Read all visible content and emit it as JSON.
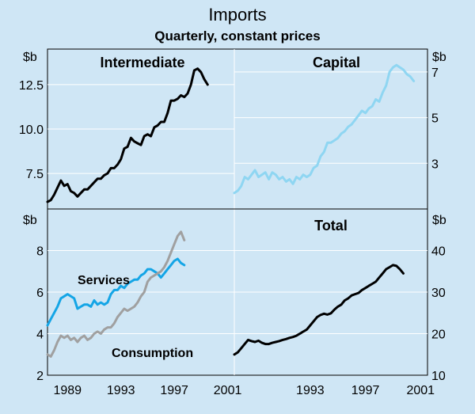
{
  "title": "Imports",
  "subtitle": "Quarterly, constant prices",
  "colors": {
    "background": "#cfe6f5",
    "intermediate": "#000000",
    "capital": "#8fd6f2",
    "services": "#14a5e6",
    "consumption": "#a0a0a0",
    "total": "#000000"
  },
  "chart_data": [
    {
      "id": "intermediate",
      "type": "line",
      "title": "Intermediate",
      "unit": "$b",
      "axis_side": "left",
      "ylim": [
        5.5,
        14.5
      ],
      "yticks": [
        7.5,
        10.0,
        12.5
      ],
      "ytick_labels": [
        "7.5",
        "10.0",
        "12.5"
      ],
      "xlim": [
        1987.5,
        2001.5
      ],
      "start": 1987.5,
      "series": [
        {
          "name": "Intermediate",
          "color": "#000000",
          "values": [
            5.9,
            6.0,
            6.3,
            6.7,
            7.1,
            6.8,
            6.9,
            6.5,
            6.4,
            6.2,
            6.4,
            6.6,
            6.6,
            6.8,
            7.0,
            7.2,
            7.2,
            7.4,
            7.5,
            7.8,
            7.8,
            8.0,
            8.3,
            8.9,
            9.0,
            9.5,
            9.3,
            9.2,
            9.1,
            9.6,
            9.7,
            9.6,
            10.1,
            10.2,
            10.4,
            10.4,
            10.9,
            11.6,
            11.6,
            11.7,
            11.9,
            11.8,
            12.0,
            12.5,
            13.3,
            13.4,
            13.2,
            12.8,
            12.5
          ]
        }
      ]
    },
    {
      "id": "capital",
      "type": "line",
      "title": "Capital",
      "unit": "$b",
      "axis_side": "right",
      "ylim": [
        1.0,
        8.0
      ],
      "yticks": [
        3,
        5,
        7
      ],
      "ytick_labels": [
        "3",
        "5",
        "7"
      ],
      "xlim": [
        1987.5,
        2001.5
      ],
      "start": 1987.5,
      "series": [
        {
          "name": "Capital",
          "color": "#8fd6f2",
          "values": [
            1.7,
            1.8,
            2.0,
            2.4,
            2.3,
            2.5,
            2.7,
            2.4,
            2.5,
            2.6,
            2.3,
            2.6,
            2.5,
            2.3,
            2.4,
            2.2,
            2.3,
            2.1,
            2.4,
            2.3,
            2.5,
            2.4,
            2.5,
            2.8,
            2.9,
            3.3,
            3.5,
            3.9,
            3.9,
            4.0,
            4.1,
            4.3,
            4.4,
            4.6,
            4.7,
            4.9,
            5.1,
            5.3,
            5.2,
            5.4,
            5.5,
            5.8,
            5.7,
            6.1,
            6.4,
            7.0,
            7.2,
            7.3,
            7.2,
            7.1,
            6.9,
            6.8,
            6.6
          ]
        }
      ]
    },
    {
      "id": "services-consumption",
      "type": "line",
      "title": "",
      "unit": "$b",
      "axis_side": "left",
      "ylim": [
        2,
        10
      ],
      "yticks": [
        2,
        4,
        6,
        8
      ],
      "ytick_labels": [
        "2",
        "4",
        "6",
        "8"
      ],
      "xlim": [
        1987.5,
        2001.5
      ],
      "start": 1987.5,
      "xticks": [
        1989,
        1993,
        1997,
        2001
      ],
      "xtick_labels": [
        "1989",
        "1993",
        "1997",
        "2001"
      ],
      "series": [
        {
          "name": "Services",
          "color": "#14a5e6",
          "values": [
            4.4,
            4.7,
            5.0,
            5.3,
            5.7,
            5.8,
            5.9,
            5.8,
            5.7,
            5.2,
            5.3,
            5.4,
            5.4,
            5.3,
            5.6,
            5.4,
            5.5,
            5.4,
            5.5,
            5.9,
            6.1,
            6.1,
            6.3,
            6.2,
            6.4,
            6.5,
            6.6,
            6.6,
            6.8,
            6.9,
            7.1,
            7.1,
            7.0,
            6.9,
            6.7,
            6.9,
            7.1,
            7.3,
            7.5,
            7.6,
            7.4,
            7.3
          ]
        },
        {
          "name": "Consumption",
          "color": "#a0a0a0",
          "values": [
            3.0,
            2.9,
            3.2,
            3.6,
            3.9,
            3.8,
            3.9,
            3.7,
            3.8,
            3.6,
            3.8,
            3.9,
            3.7,
            3.8,
            4.0,
            4.1,
            4.0,
            4.2,
            4.3,
            4.3,
            4.5,
            4.8,
            5.0,
            5.2,
            5.1,
            5.2,
            5.3,
            5.5,
            5.8,
            6.0,
            6.5,
            6.7,
            6.8,
            6.9,
            7.0,
            7.2,
            7.5,
            7.9,
            8.3,
            8.7,
            8.9,
            8.5
          ]
        }
      ]
    },
    {
      "id": "total",
      "type": "line",
      "title": "Total",
      "unit": "$b",
      "axis_side": "right",
      "ylim": [
        10,
        50
      ],
      "yticks": [
        10,
        20,
        30,
        40
      ],
      "ytick_labels": [
        "10",
        "20",
        "30",
        "40"
      ],
      "xlim": [
        1987.5,
        2001.5
      ],
      "start": 1987.5,
      "xticks": [
        1993,
        1997,
        2001
      ],
      "xtick_labels": [
        "1993",
        "1997",
        "2001"
      ],
      "series": [
        {
          "name": "Total",
          "color": "#000000",
          "values": [
            15.0,
            15.5,
            16.5,
            17.5,
            18.5,
            18.2,
            18.0,
            18.3,
            17.8,
            17.5,
            17.5,
            17.8,
            18.0,
            18.2,
            18.5,
            18.7,
            19.0,
            19.2,
            19.5,
            20.0,
            20.5,
            21.0,
            22.0,
            23.0,
            24.0,
            24.5,
            24.8,
            24.6,
            24.9,
            25.8,
            26.5,
            27.0,
            28.0,
            28.5,
            29.2,
            29.5,
            29.8,
            30.5,
            31.0,
            31.5,
            32.0,
            32.5,
            33.5,
            34.5,
            35.5,
            36.0,
            36.5,
            36.3,
            35.5,
            34.5
          ]
        }
      ]
    }
  ],
  "labels": {
    "services": "Services",
    "consumption": "Consumption"
  }
}
